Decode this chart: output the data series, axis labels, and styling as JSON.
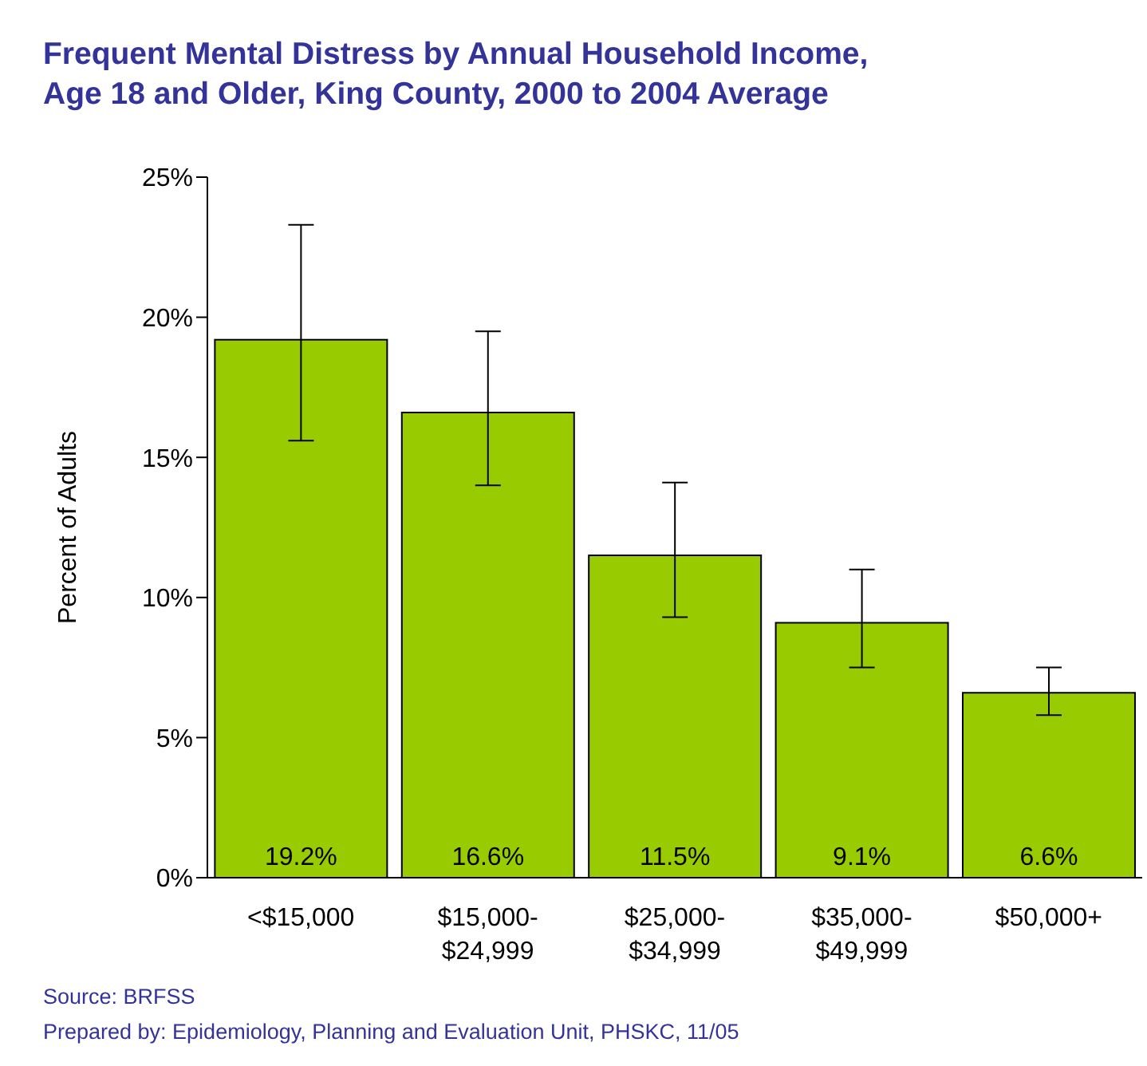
{
  "chart_data": {
    "type": "bar",
    "title": "Frequent Mental Distress by Annual Household Income,\nAge 18 and Older, King County, 2000 to 2004 Average",
    "ylabel": "Percent of Adults",
    "categories": [
      "<$15,000",
      "$15,000-$24,999",
      "$25,000-$34,999",
      "$35,000-$49,999",
      "$50,000+"
    ],
    "values": [
      19.2,
      16.6,
      11.5,
      9.1,
      6.6
    ],
    "value_labels": [
      "19.2%",
      "16.6%",
      "11.5%",
      "9.1%",
      "6.6%"
    ],
    "errors": [
      [
        15.6,
        23.3
      ],
      [
        14.0,
        19.5
      ],
      [
        9.3,
        14.1
      ],
      [
        7.5,
        11.0
      ],
      [
        5.8,
        7.5
      ]
    ],
    "color": "#99cc00",
    "ylim": [
      0,
      25
    ],
    "yticks": [
      {
        "value": 0,
        "label": "0%"
      },
      {
        "value": 5,
        "label": "5%"
      },
      {
        "value": 10,
        "label": "10%"
      },
      {
        "value": 15,
        "label": "15%"
      },
      {
        "value": 20,
        "label": "20%"
      },
      {
        "value": 25,
        "label": "25%"
      }
    ],
    "grid": false,
    "legend": false,
    "annotations": [
      "Source: BRFSS",
      "Prepared by: Epidemiology, Planning and Evaluation Unit, PHSKC, 11/05"
    ]
  }
}
